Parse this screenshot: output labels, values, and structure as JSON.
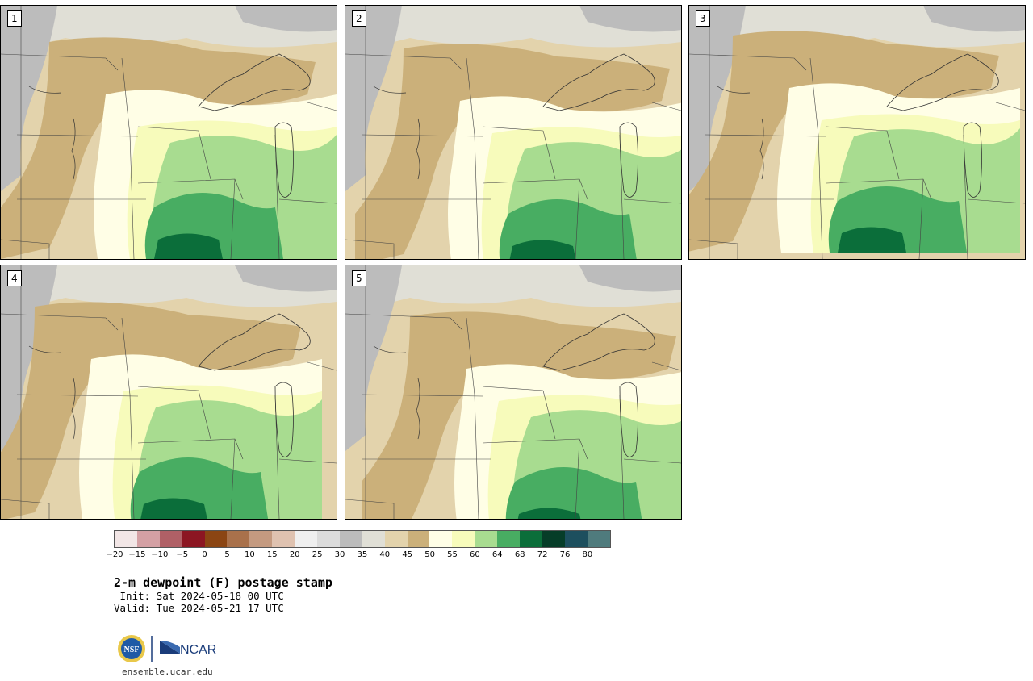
{
  "figure": {
    "title": "2-m dewpoint (F) postage stamp",
    "init": " Init: Sat 2024-05-18 00 UTC",
    "valid": "Valid: Tue 2024-05-21 17 UTC",
    "site": "ensemble.ucar.edu",
    "logo_text": "NCAR",
    "nsf_text": "NSF"
  },
  "panels": [
    {
      "number": "1",
      "variant": 0
    },
    {
      "number": "2",
      "variant": 1
    },
    {
      "number": "3",
      "variant": 2
    },
    {
      "number": "4",
      "variant": 3
    },
    {
      "number": "5",
      "variant": 4
    }
  ],
  "colorbar": {
    "labels": [
      "−20",
      "−15",
      "−10",
      "−5",
      "0",
      "5",
      "10",
      "15",
      "20",
      "25",
      "30",
      "35",
      "40",
      "45",
      "50",
      "55",
      "60",
      "64",
      "68",
      "72",
      "76",
      "80"
    ],
    "colors": [
      "#f2e6e6",
      "#d4a0a4",
      "#b06066",
      "#8c1622",
      "#8b4513",
      "#a9714b",
      "#c49a80",
      "#dfc2b0",
      "#efefef",
      "#dcdcdc",
      "#bcbcbc",
      "#e0dfd6",
      "#e3d3ac",
      "#cbb07a",
      "#fffee6",
      "#f7fbbb",
      "#a8dc90",
      "#48ad62",
      "#0b6e3a",
      "#063d28",
      "#1d4f5e",
      "#4f7b7d"
    ]
  },
  "palette": {
    "gray": "#bcbcbc",
    "light_gray": "#e0dfd6",
    "tan_light": "#e3d3ac",
    "tan": "#cbb07a",
    "cream": "#fffee6",
    "yellow": "#f7fbbb",
    "green_light": "#a8dc90",
    "green": "#48ad62",
    "green_dark": "#0b6e3a"
  }
}
